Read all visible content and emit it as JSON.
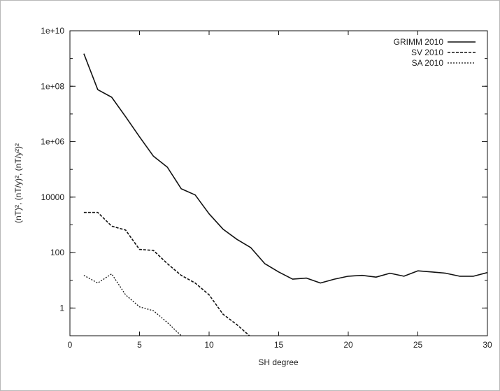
{
  "chart_data": {
    "type": "line",
    "xlabel": "SH degree",
    "ylabel": "(nT)², (nT/y)², (nT/y²)²",
    "scale": {
      "x": "linear",
      "y": "log"
    },
    "xlim": [
      0,
      30
    ],
    "ylim": [
      0.1,
      10000000000
    ],
    "x_ticks": [
      0,
      5,
      10,
      15,
      20,
      25,
      30
    ],
    "y_ticks": [
      {
        "value": 1,
        "label": "1"
      },
      {
        "value": 100,
        "label": "100"
      },
      {
        "value": 10000,
        "label": "10000"
      },
      {
        "value": 1000000,
        "label": "1e+06"
      },
      {
        "value": 100000000,
        "label": "1e+08"
      },
      {
        "value": 10000000000,
        "label": "1e+10"
      }
    ],
    "grid": false,
    "legend_position": "top-right",
    "series": [
      {
        "name": "GRIMM 2010",
        "style": "solid",
        "x": [
          1,
          2,
          3,
          4,
          5,
          6,
          7,
          8,
          9,
          10,
          11,
          12,
          13,
          14,
          15,
          16,
          17,
          18,
          19,
          20,
          21,
          22,
          23,
          24,
          25,
          26,
          27,
          28,
          29,
          30
        ],
        "values": [
          1500000000,
          75000000,
          40000000,
          8000000,
          1500000,
          300000,
          120000,
          20000,
          12000,
          2500,
          700,
          300,
          150,
          40,
          20,
          11,
          12,
          8,
          11,
          14,
          15,
          13,
          18,
          14,
          22,
          20,
          18,
          14,
          14,
          19
        ]
      },
      {
        "name": "SV 2010",
        "style": "dashed",
        "x": [
          1,
          2,
          3,
          4,
          5,
          6,
          7,
          8,
          9,
          10,
          11,
          12,
          13
        ],
        "values": [
          2800,
          2800,
          900,
          650,
          130,
          120,
          40,
          15,
          8,
          3,
          0.6,
          0.25,
          0.09
        ]
      },
      {
        "name": "SA 2010",
        "style": "dotted",
        "x": [
          1,
          2,
          3,
          4,
          5,
          6,
          7,
          8
        ],
        "values": [
          15,
          8,
          17,
          3,
          1.1,
          0.8,
          0.3,
          0.1
        ]
      }
    ]
  }
}
